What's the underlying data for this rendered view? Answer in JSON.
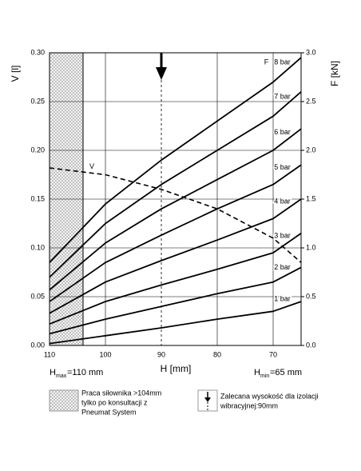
{
  "chart_data": {
    "type": "line",
    "ylabel": "V [l]",
    "y2label": "F [kN]",
    "xlabel": "H [mm]",
    "x": [
      110,
      100,
      90,
      80,
      70,
      65
    ],
    "xlim": [
      110,
      65
    ],
    "xticks": [
      110,
      100,
      90,
      80,
      70
    ],
    "ylim": [
      0,
      0.3
    ],
    "yticks": [
      {
        "value": 0,
        "label": "0.00"
      },
      {
        "value": 0.05,
        "label": "0.05"
      },
      {
        "value": 0.1,
        "label": "0.10"
      },
      {
        "value": 0.15,
        "label": "0.15"
      },
      {
        "value": 0.2,
        "label": "0.20"
      },
      {
        "value": 0.25,
        "label": "0.25"
      },
      {
        "value": 0.3,
        "label": "0.30"
      }
    ],
    "y2lim": [
      0,
      3
    ],
    "y2ticks": [
      {
        "value": 0,
        "label": "0.0"
      },
      {
        "value": 0.5,
        "label": "0.5"
      },
      {
        "value": 1,
        "label": "1.0"
      },
      {
        "value": 1.5,
        "label": "1.5"
      },
      {
        "value": 2,
        "label": "2.0"
      },
      {
        "value": 2.5,
        "label": "2.5"
      },
      {
        "value": 3,
        "label": "3.0"
      }
    ],
    "grid": true,
    "series": [
      {
        "name": "8 bar",
        "color": "#000000",
        "axis": "y2",
        "values": [
          0.85,
          1.45,
          1.9,
          2.3,
          2.7,
          2.95
        ]
      },
      {
        "name": "7 bar",
        "color": "#000000",
        "axis": "y2",
        "values": [
          0.7,
          1.25,
          1.65,
          2.0,
          2.35,
          2.6
        ]
      },
      {
        "name": "6 bar",
        "color": "#000000",
        "axis": "y2",
        "values": [
          0.57,
          1.05,
          1.4,
          1.7,
          2.0,
          2.22
        ]
      },
      {
        "name": "5 bar",
        "color": "#000000",
        "axis": "y2",
        "values": [
          0.45,
          0.85,
          1.13,
          1.4,
          1.65,
          1.85
        ]
      },
      {
        "name": "4 bar",
        "color": "#000000",
        "axis": "y2",
        "values": [
          0.33,
          0.65,
          0.87,
          1.08,
          1.3,
          1.5
        ]
      },
      {
        "name": "3 bar",
        "color": "#000000",
        "axis": "y2",
        "values": [
          0.22,
          0.45,
          0.62,
          0.78,
          0.95,
          1.15
        ]
      },
      {
        "name": "2 bar",
        "color": "#000000",
        "axis": "y2",
        "values": [
          0.12,
          0.27,
          0.4,
          0.53,
          0.65,
          0.8
        ]
      },
      {
        "name": "1 bar",
        "color": "#000000",
        "axis": "y2",
        "values": [
          0.02,
          0.1,
          0.18,
          0.27,
          0.35,
          0.45
        ]
      },
      {
        "name": "V",
        "color": "#000000",
        "dash": true,
        "values": [
          0.182,
          0.175,
          0.16,
          0.14,
          0.11,
          0.085
        ]
      }
    ],
    "f_label": "F",
    "restricted_range": [
      110,
      104
    ],
    "recommended_height": 90,
    "hmax": {
      "symbol": "H",
      "sub": "max",
      "text": "=110 mm"
    },
    "hmin": {
      "symbol": "H",
      "sub": "min",
      "text": "=65 mm"
    },
    "legend": {
      "restricted": [
        "Praca siłownika >104mm",
        "tylko po konsultacji z",
        "Pneumat System"
      ],
      "recommended": [
        "Zalecana wysokość dla izolacji",
        "wibracyjnej:90mm"
      ]
    }
  }
}
